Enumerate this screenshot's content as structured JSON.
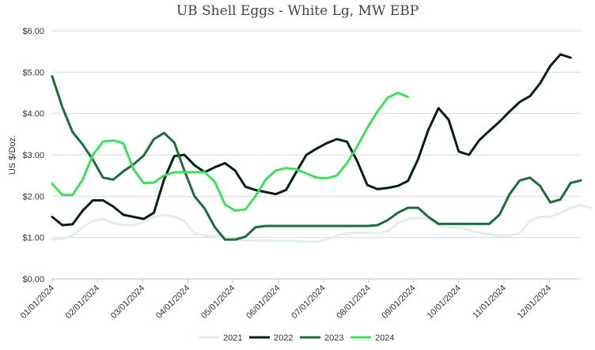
{
  "chart_data": {
    "type": "line",
    "title": "UB Shell Eggs - White Lg, MW EBP",
    "ylabel": "US $/Doz.",
    "xlabel": "",
    "ylim": [
      0,
      6
    ],
    "yticks": [
      "$0.00",
      "$1.00",
      "$2.00",
      "$3.00",
      "$4.00",
      "$5.00",
      "$6.00"
    ],
    "ytick_values": [
      0,
      1,
      2,
      3,
      4,
      5,
      6
    ],
    "xticks": [
      "01/01/2024",
      "02/01/2024",
      "03/01/2024",
      "04/01/2024",
      "05/01/2024",
      "06/01/2024",
      "07/01/2024",
      "08/01/2024",
      "09/01/2024",
      "10/01/2024",
      "11/01/2024",
      "12/01/2024"
    ],
    "week_count": 53,
    "grid": true,
    "legend_position": "bottom",
    "series": [
      {
        "name": "2021",
        "color": "#e3efe6",
        "values": [
          0.95,
          0.97,
          1.05,
          1.25,
          1.4,
          1.45,
          1.35,
          1.3,
          1.3,
          1.38,
          1.5,
          1.55,
          1.5,
          1.4,
          1.1,
          1.05,
          1.03,
          1.02,
          0.95,
          0.93,
          0.93,
          0.92,
          0.92,
          0.92,
          0.92,
          0.9,
          0.9,
          0.95,
          1.05,
          1.1,
          1.12,
          1.12,
          1.1,
          1.15,
          1.35,
          1.45,
          1.48,
          1.45,
          1.3,
          1.25,
          1.25,
          1.18,
          1.12,
          1.08,
          1.05,
          1.05,
          1.1,
          1.4,
          1.5,
          1.5,
          1.6,
          1.72,
          1.78,
          1.72
        ]
      },
      {
        "name": "2022",
        "color": "#0a1f13",
        "values": [
          1.5,
          1.3,
          1.32,
          1.65,
          1.9,
          1.9,
          1.75,
          1.55,
          1.5,
          1.45,
          1.6,
          2.4,
          2.97,
          3.0,
          2.75,
          2.58,
          2.7,
          2.8,
          2.62,
          2.23,
          2.15,
          2.1,
          2.05,
          2.15,
          2.58,
          3.0,
          3.15,
          3.28,
          3.38,
          3.32,
          2.85,
          2.27,
          2.17,
          2.2,
          2.25,
          2.37,
          2.9,
          3.6,
          4.13,
          3.85,
          3.08,
          3.0,
          3.35,
          3.58,
          3.8,
          4.05,
          4.28,
          4.42,
          4.73,
          5.15,
          5.43,
          5.35
        ]
      },
      {
        "name": "2023",
        "color": "#1b6e3c",
        "values": [
          4.9,
          4.15,
          3.55,
          3.25,
          2.88,
          2.45,
          2.4,
          2.6,
          2.77,
          2.98,
          3.38,
          3.53,
          3.3,
          2.62,
          2.0,
          1.7,
          1.25,
          0.95,
          0.95,
          1.02,
          1.25,
          1.28,
          1.28,
          1.28,
          1.28,
          1.28,
          1.28,
          1.28,
          1.28,
          1.28,
          1.28,
          1.28,
          1.3,
          1.42,
          1.6,
          1.72,
          1.72,
          1.5,
          1.33,
          1.33,
          1.33,
          1.33,
          1.33,
          1.33,
          1.55,
          2.05,
          2.38,
          2.45,
          2.25,
          1.85,
          1.92,
          2.32,
          2.38
        ]
      },
      {
        "name": "2024",
        "color": "#3de05a",
        "values": [
          2.3,
          2.03,
          2.03,
          2.4,
          3.0,
          3.32,
          3.35,
          3.28,
          2.65,
          2.32,
          2.33,
          2.5,
          2.58,
          2.58,
          2.58,
          2.58,
          2.35,
          1.8,
          1.65,
          1.68,
          2.0,
          2.4,
          2.62,
          2.68,
          2.65,
          2.55,
          2.45,
          2.43,
          2.5,
          2.8,
          3.2,
          3.65,
          4.05,
          4.38,
          4.5,
          4.4
        ]
      }
    ]
  }
}
